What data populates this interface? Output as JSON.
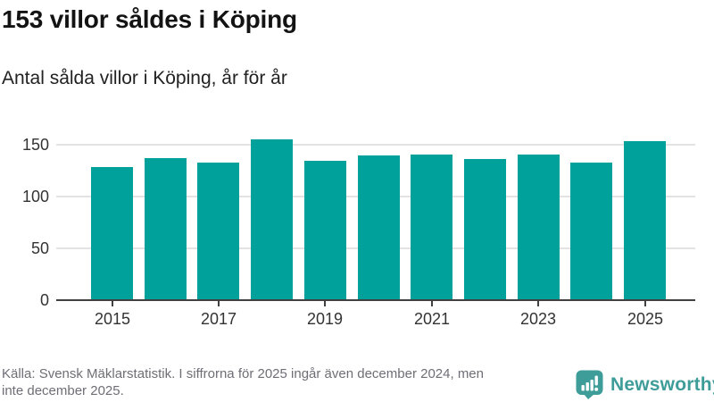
{
  "header": {
    "title": "153 villor såldes i Köping",
    "subtitle": "Antal sålda villor i Köping, år för år"
  },
  "chart_data": {
    "type": "bar",
    "categories": [
      "2015",
      "2016",
      "2017",
      "2018",
      "2019",
      "2020",
      "2021",
      "2022",
      "2023",
      "2024",
      "2025"
    ],
    "values": [
      128,
      137,
      132,
      155,
      134,
      139,
      140,
      136,
      140,
      132,
      153
    ],
    "title": "153 villor såldes i Köping",
    "subtitle": "Antal sålda villor i Köping, år för år",
    "xlabel": "",
    "ylabel": "",
    "x_tick_labels": [
      "2015",
      "2017",
      "2019",
      "2021",
      "2023",
      "2025"
    ],
    "y_ticks": [
      0,
      50,
      100,
      150
    ],
    "ylim": [
      0,
      160
    ],
    "grid": true,
    "legend": "none",
    "bar_color": "#00A19A",
    "gridline_color": "#e3e3e3",
    "axis_color": "#404040"
  },
  "footer": {
    "source_lines": [
      "Källa: Svensk Mäklarstatistik. I siffrorna för 2025 ingår även december 2024, men",
      "inte december 2025."
    ],
    "logo_text": "Newsworthy",
    "logo_color": "#3E9D99"
  }
}
